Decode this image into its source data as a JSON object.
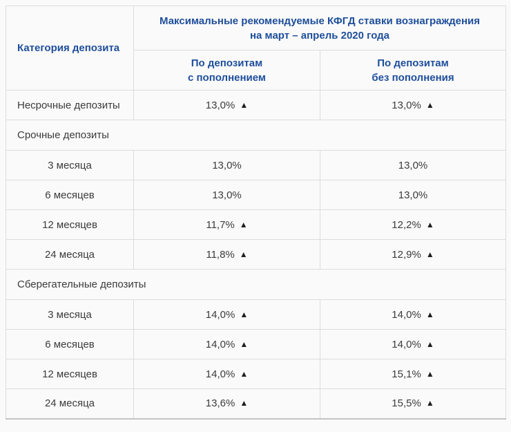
{
  "theme": {
    "accent_blue": "#1e4e9b",
    "text_color": "#3b3b3b",
    "border_color": "#dcdcdc",
    "background": "#fafafa",
    "arrow_color": "#1f1f1f"
  },
  "table": {
    "corner_header": "Категория депозита",
    "title_line1": "Максимальные рекомендуемые КФГД ставки вознаграждения",
    "title_line2": "на март – апрель 2020 года",
    "columns": [
      {
        "line1": "По депозитам",
        "line2": "с пополнением"
      },
      {
        "line1": "По депозитам",
        "line2": "без пополнения"
      }
    ],
    "up_arrow": "▲",
    "rows": [
      {
        "type": "data",
        "label": "Несрочные депозиты",
        "label_align": "left",
        "values": [
          {
            "rate": "13,0%",
            "arrow": true
          },
          {
            "rate": "13,0%",
            "arrow": true
          }
        ]
      },
      {
        "type": "section",
        "label": "Срочные депозиты"
      },
      {
        "type": "data",
        "label": "3 месяца",
        "label_align": "center",
        "values": [
          {
            "rate": "13,0%",
            "arrow": false
          },
          {
            "rate": "13,0%",
            "arrow": false
          }
        ]
      },
      {
        "type": "data",
        "label": "6 месяцев",
        "label_align": "center",
        "values": [
          {
            "rate": "13,0%",
            "arrow": false
          },
          {
            "rate": "13,0%",
            "arrow": false
          }
        ]
      },
      {
        "type": "data",
        "label": "12 месяцев",
        "label_align": "center",
        "values": [
          {
            "rate": "11,7%",
            "arrow": true
          },
          {
            "rate": "12,2%",
            "arrow": true
          }
        ]
      },
      {
        "type": "data",
        "label": "24 месяца",
        "label_align": "center",
        "values": [
          {
            "rate": "11,8%",
            "arrow": true
          },
          {
            "rate": "12,9%",
            "arrow": true
          }
        ]
      },
      {
        "type": "section",
        "label": "Сберегательные депозиты"
      },
      {
        "type": "data",
        "label": "3 месяца",
        "label_align": "center",
        "values": [
          {
            "rate": "14,0%",
            "arrow": true
          },
          {
            "rate": "14,0%",
            "arrow": true
          }
        ]
      },
      {
        "type": "data",
        "label": "6 месяцев",
        "label_align": "center",
        "values": [
          {
            "rate": "14,0%",
            "arrow": true
          },
          {
            "rate": "14,0%",
            "arrow": true
          }
        ]
      },
      {
        "type": "data",
        "label": "12 месяцев",
        "label_align": "center",
        "values": [
          {
            "rate": "14,0%",
            "arrow": true
          },
          {
            "rate": "15,1%",
            "arrow": true
          }
        ]
      },
      {
        "type": "data",
        "label": "24 месяца",
        "label_align": "center",
        "values": [
          {
            "rate": "13,6%",
            "arrow": true
          },
          {
            "rate": "15,5%",
            "arrow": true
          }
        ]
      }
    ]
  },
  "chart_data": {
    "type": "table",
    "title": "Максимальные рекомендуемые КФГД ставки вознаграждения на март – апрель 2020 года",
    "columns": [
      "Категория депозита",
      "По депозитам с пополнением",
      "По депозитам без пополнения"
    ],
    "rows": [
      [
        "Несрочные депозиты",
        "13,0% ▲",
        "13,0% ▲"
      ],
      [
        "Срочные депозиты",
        "",
        ""
      ],
      [
        "3 месяца",
        "13,0%",
        "13,0%"
      ],
      [
        "6 месяцев",
        "13,0%",
        "13,0%"
      ],
      [
        "12 месяцев",
        "11,7% ▲",
        "12,2% ▲"
      ],
      [
        "24 месяца",
        "11,8% ▲",
        "12,9% ▲"
      ],
      [
        "Сберегательные депозиты",
        "",
        ""
      ],
      [
        "3 месяца",
        "14,0% ▲",
        "14,0% ▲"
      ],
      [
        "6 месяцев",
        "14,0% ▲",
        "14,0% ▲"
      ],
      [
        "12 месяцев",
        "14,0% ▲",
        "15,1% ▲"
      ],
      [
        "24 месяца",
        "13,6% ▲",
        "15,5% ▲"
      ]
    ]
  }
}
